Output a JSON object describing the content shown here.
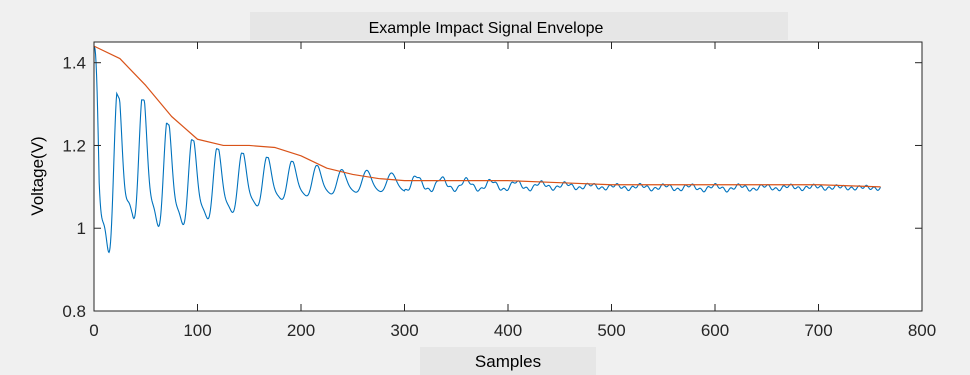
{
  "chart_data": {
    "type": "line",
    "title": "Example Impact Signal Envelope",
    "xlabel": "Samples",
    "ylabel": "Voltage(V)",
    "xlim": [
      0,
      800
    ],
    "ylim": [
      0.8,
      1.45
    ],
    "xticks": [
      0,
      100,
      200,
      300,
      400,
      500,
      600,
      700,
      800
    ],
    "yticks": [
      0.8,
      1,
      1.2,
      1.4
    ],
    "x_tick_labels": [
      "0",
      "100",
      "200",
      "300",
      "400",
      "500",
      "600",
      "700",
      "800"
    ],
    "y_tick_labels": [
      "0.8",
      "1",
      "1.2",
      "1.4"
    ],
    "grid": false,
    "legend": "none",
    "series": [
      {
        "color": "#0072bd",
        "x_range": [
          0,
          760
        ],
        "baseline": 1.1,
        "oscillation_period": 24,
        "peak_envelope": [
          [
            0,
            1.44
          ],
          [
            25,
            1.31
          ],
          [
            48,
            1.31
          ],
          [
            72,
            1.25
          ],
          [
            97,
            1.21
          ],
          [
            121,
            1.19
          ],
          [
            146,
            1.18
          ],
          [
            170,
            1.17
          ],
          [
            195,
            1.16
          ],
          [
            219,
            1.15
          ],
          [
            243,
            1.14
          ],
          [
            268,
            1.14
          ],
          [
            300,
            1.13
          ],
          [
            350,
            1.12
          ],
          [
            400,
            1.115
          ],
          [
            450,
            1.11
          ],
          [
            500,
            1.105
          ],
          [
            600,
            1.105
          ],
          [
            700,
            1.103
          ],
          [
            760,
            1.1
          ]
        ],
        "trough_envelope": [
          [
            0,
            1.44
          ],
          [
            5,
            0.85
          ],
          [
            37,
            0.99
          ],
          [
            60,
            0.97
          ],
          [
            85,
            0.98
          ],
          [
            110,
            1.0
          ],
          [
            135,
            1.02
          ],
          [
            160,
            1.04
          ],
          [
            185,
            1.06
          ],
          [
            210,
            1.07
          ],
          [
            250,
            1.08
          ],
          [
            300,
            1.085
          ],
          [
            350,
            1.09
          ],
          [
            400,
            1.09
          ],
          [
            450,
            1.095
          ],
          [
            500,
            1.095
          ],
          [
            600,
            1.09
          ],
          [
            700,
            1.095
          ],
          [
            760,
            1.095
          ]
        ]
      },
      {
        "color": "#d95319",
        "x": [
          0,
          25,
          50,
          75,
          100,
          125,
          150,
          175,
          200,
          225,
          250,
          275,
          300,
          350,
          400,
          450,
          500,
          550,
          600,
          650,
          700,
          760
        ],
        "y": [
          1.44,
          1.41,
          1.345,
          1.27,
          1.215,
          1.2,
          1.2,
          1.195,
          1.175,
          1.145,
          1.13,
          1.12,
          1.115,
          1.115,
          1.115,
          1.11,
          1.105,
          1.105,
          1.105,
          1.105,
          1.105,
          1.1
        ]
      }
    ]
  }
}
